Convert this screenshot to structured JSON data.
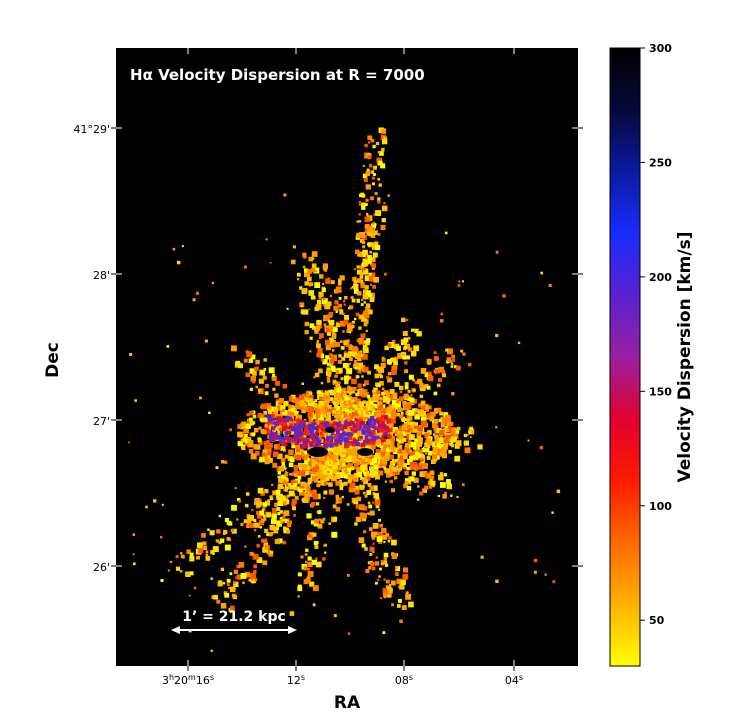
{
  "image": {
    "title_prefix": "H",
    "title_alpha": "α",
    "title_rest": " Velocity Dispersion at  R = 7000",
    "scalebar_label": "1’ = 21.2 kpc"
  },
  "axes": {
    "xlabel": "RA",
    "ylabel": "Dec",
    "x_ticks": [
      {
        "h": "3",
        "m": "20",
        "s": "16",
        "short": ""
      },
      {
        "short": "12",
        "sup": "s"
      },
      {
        "short": "08",
        "sup": "s"
      },
      {
        "short": "04",
        "sup": "s"
      }
    ],
    "y_ticks": [
      "41°29'",
      "28'",
      "27'",
      "26'"
    ]
  },
  "colorbar": {
    "label": "Velocity Dispersion [km/s]",
    "ticks": [
      "300",
      "250",
      "200",
      "150",
      "100",
      "50"
    ],
    "tick_values": [
      300,
      250,
      200,
      150,
      100,
      50
    ],
    "min": 30,
    "max": 300,
    "colors": [
      "#ffff00",
      "#ffb000",
      "#ff6a00",
      "#ff1a00",
      "#e00030",
      "#9a20a0",
      "#5a20d0",
      "#1a2cff",
      "#0a1aa0",
      "#05083c",
      "#000000"
    ]
  },
  "colors": {
    "background": "#000000",
    "frame": "#000000",
    "text_on_image": "#ffffff"
  }
}
